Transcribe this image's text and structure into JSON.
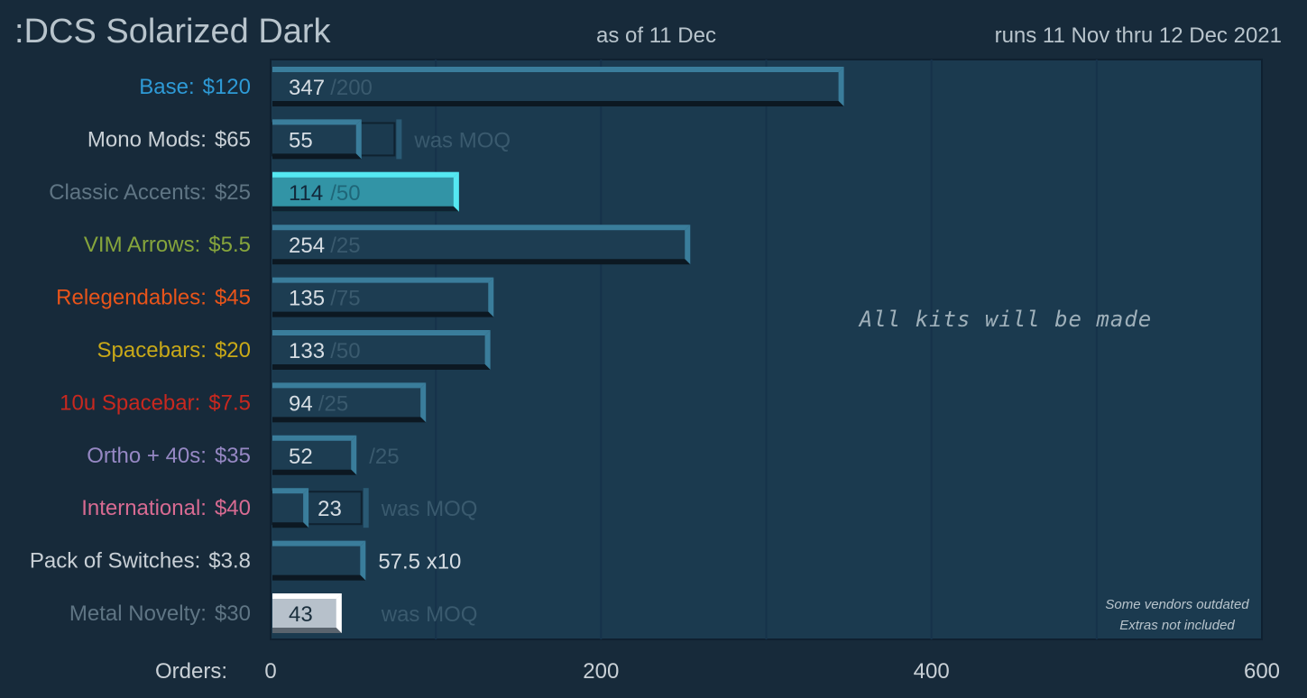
{
  "header": {
    "title": ":DCS Solarized Dark",
    "as_of": "as of  11 Dec",
    "runs": "runs  11 Nov  thru  12 Dec  2021"
  },
  "colors": {
    "background": "#172a3a",
    "plot_background": "#1b3a4f",
    "gridline": "#16324a",
    "bar_fill": "#1d3d52",
    "bar_bevel_light": "#3a7d9b",
    "bar_bevel_dark": "#0c1822",
    "highlight_fill": "#3294a6",
    "highlight_bevel": "#55e8f2",
    "metal_fill": "#b7c1cb",
    "metal_bevel": "#ffffff",
    "muted_text": "#3a5a6e"
  },
  "chart_data": {
    "type": "bar",
    "orientation": "horizontal",
    "x_axis_label": "Orders:",
    "xlim": [
      0,
      600
    ],
    "x_ticks": [
      0,
      200,
      400,
      600
    ],
    "gridlines_at": [
      100,
      200,
      300,
      400,
      500
    ],
    "annotation": "All  kits  will  be  made",
    "footnotes": [
      "Some vendors outdated",
      "Extras not included"
    ],
    "categories": [
      {
        "name": "Base:",
        "price": "$120",
        "color": "#2e9ad6",
        "orders": 347,
        "moq": 200,
        "value_label": "347",
        "moq_label": "/200",
        "style": "normal"
      },
      {
        "name": "Mono Mods:",
        "price": "$65",
        "color": "#c9d0d6",
        "orders": 55,
        "moq": 75,
        "value_label": "55",
        "moq_label": "was MOQ",
        "style": "was_moq"
      },
      {
        "name": "Classic Accents:",
        "price": "$25",
        "color": "#5f7584",
        "orders": 114,
        "moq": 50,
        "value_label": "114",
        "moq_label": "/50",
        "style": "highlight"
      },
      {
        "name": "VIM Arrows:",
        "price": "$5.5",
        "color": "#86a53c",
        "orders": 254,
        "moq": 25,
        "value_label": "254",
        "moq_label": "/25",
        "style": "normal"
      },
      {
        "name": "Relegendables:",
        "price": "$45",
        "color": "#e8541a",
        "orders": 135,
        "moq": 75,
        "value_label": "135",
        "moq_label": "/75",
        "style": "normal"
      },
      {
        "name": "Spacebars:",
        "price": "$20",
        "color": "#c9a918",
        "orders": 133,
        "moq": 50,
        "value_label": "133",
        "moq_label": "/50",
        "style": "normal"
      },
      {
        "name": "10u Spacebar:",
        "price": "$7.5",
        "color": "#c8281f",
        "orders": 94,
        "moq": 25,
        "value_label": "94",
        "moq_label": "/25",
        "style": "normal"
      },
      {
        "name": "Ortho + 40s:",
        "price": "$35",
        "color": "#9688c4",
        "orders": 52,
        "moq": 25,
        "value_label": "52",
        "moq_label": "/25",
        "style": "normal"
      },
      {
        "name": "International:",
        "price": "$40",
        "color": "#d86b92",
        "orders": 23,
        "moq": 55,
        "value_label": "23",
        "moq_label": "was MOQ",
        "style": "was_moq"
      },
      {
        "name": "Pack of Switches:",
        "price": "$3.8",
        "color": "#c9d0d6",
        "orders": 57.5,
        "moq": null,
        "value_label": "57.5 x10",
        "moq_label": "",
        "style": "switches"
      },
      {
        "name": "Metal Novelty:",
        "price": "$30",
        "color": "#5f7584",
        "orders": 43,
        "moq": 55,
        "value_label": "43",
        "moq_label": "was MOQ",
        "style": "metal"
      }
    ]
  }
}
